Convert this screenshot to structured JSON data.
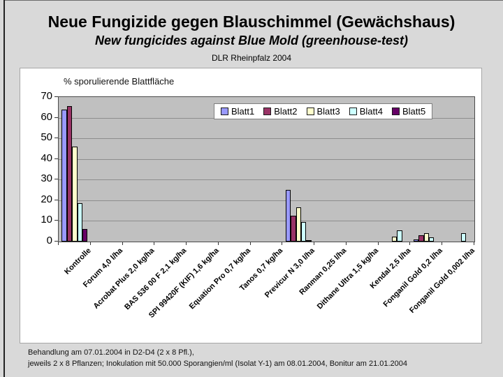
{
  "slide": {
    "title": "Neue Fungizide gegen Blauschimmel (Gewächshaus)",
    "subtitle": "New fungicides against Blue Mold (greenhouse-test)",
    "source": "DLR Rheinpfalz 2004",
    "footer_line1": "Behandlung am 07.01.2004 in D2-D4 (2 x 8 Pfl.),",
    "footer_line2": "jeweils 2 x 8 Pflanzen; Inokulation mit 50.000 Sporangien/ml (Isolat Y-1) am 08.01.2004, Bonitur am 21.01.2004"
  },
  "chart_data": {
    "type": "bar",
    "title": "% sporulierende Blattfläche",
    "categories": [
      "Kontrolle",
      "Forum 4,0 l/ha",
      "Acrobat Plus 2,0 kg/ha",
      "BAS 536 00 F 2,1 kg/ha",
      "SPI 99420F (KIF) 1,6 kg/ha",
      "Equation Pro 0,7 kg/ha",
      "Tanos 0,7 kg/ha",
      "Previcur N 3,0 l/ha",
      "Ranman 0,25 l/ha",
      "Dithane Ultra 1,5 kg/ha",
      "Kendal 2,5 l/ha",
      "Fonganil Gold 0,2 l/ha",
      "Fonganil Gold 0,002 l/ha"
    ],
    "series": [
      {
        "name": "Blatt1",
        "color": "#9999FF",
        "values": [
          64,
          0,
          0,
          0,
          0,
          0,
          0,
          25,
          0,
          0,
          0,
          1,
          0
        ]
      },
      {
        "name": "Blatt2",
        "color": "#993366",
        "values": [
          65.5,
          0,
          0,
          0,
          0,
          0,
          0,
          12.5,
          0,
          0,
          0,
          3,
          0
        ]
      },
      {
        "name": "Blatt3",
        "color": "#FFFFCC",
        "values": [
          46,
          0,
          0,
          0,
          0,
          0,
          0,
          16.5,
          0,
          0,
          2.5,
          4,
          0
        ]
      },
      {
        "name": "Blatt4",
        "color": "#CCFFFF",
        "values": [
          18.5,
          0,
          0,
          0,
          0,
          0,
          0,
          9.5,
          0,
          0,
          5.5,
          2,
          4
        ]
      },
      {
        "name": "Blatt5",
        "color": "#660066",
        "values": [
          6,
          0,
          0,
          0,
          0,
          0,
          0,
          0.7,
          0,
          0,
          0,
          0,
          0
        ]
      }
    ],
    "ylim": [
      0,
      70
    ],
    "ytick_step": 10,
    "yticks": [
      0,
      10,
      20,
      30,
      40,
      50,
      60,
      70
    ],
    "grid": true,
    "legend_position": "top-right-inside",
    "plot_bg": "#C0C0C0",
    "gridline_color": "#8D8D8D"
  }
}
